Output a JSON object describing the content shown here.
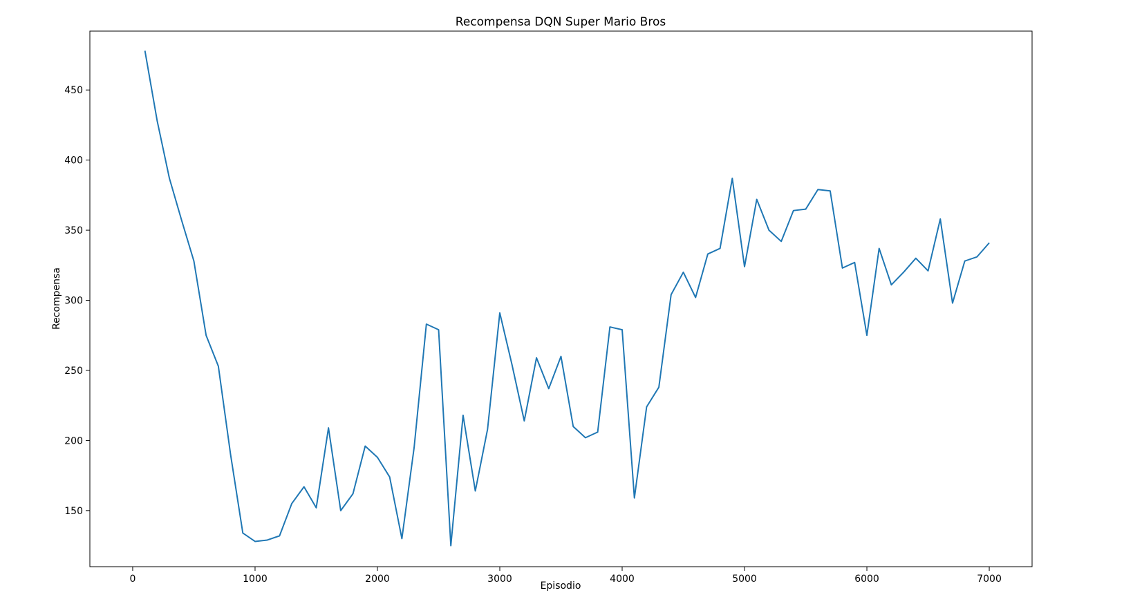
{
  "chart_data": {
    "type": "line",
    "title": "Recompensa DQN Super Mario Bros",
    "xlabel": "Episodio",
    "ylabel": "Recompensa",
    "xlim": [
      -350,
      7350
    ],
    "ylim": [
      110,
      492
    ],
    "xticks": [
      0,
      1000,
      2000,
      3000,
      4000,
      5000,
      6000,
      7000
    ],
    "yticks": [
      150,
      200,
      250,
      300,
      350,
      400,
      450
    ],
    "grid": false,
    "line_color": "#1f77b4",
    "series": [
      {
        "x": [
          100,
          200,
          300,
          400,
          500,
          600,
          700,
          800,
          900,
          1000,
          1100,
          1200,
          1300,
          1400,
          1500,
          1600,
          1700,
          1800,
          1900,
          2000,
          2100,
          2200,
          2300,
          2400,
          2500,
          2600,
          2700,
          2800,
          2900,
          3000,
          3100,
          3200,
          3300,
          3400,
          3500,
          3600,
          3700,
          3800,
          3900,
          4000,
          4100,
          4200,
          4300,
          4400,
          4500,
          4600,
          4700,
          4800,
          4900,
          5000,
          5100,
          5200,
          5300,
          5400,
          5500,
          5600,
          5700,
          5800,
          5900,
          6000,
          6100,
          6200,
          6300,
          6400,
          6500,
          6600,
          6700,
          6800,
          6900,
          7000
        ],
        "values": [
          478,
          428,
          387,
          357,
          328,
          275,
          253,
          190,
          134,
          128,
          129,
          132,
          155,
          167,
          152,
          209,
          150,
          162,
          196,
          188,
          174,
          130,
          195,
          283,
          279,
          125,
          218,
          164,
          208,
          291,
          254,
          214,
          259,
          237,
          260,
          210,
          202,
          206,
          281,
          279,
          159,
          224,
          238,
          304,
          320,
          302,
          333,
          337,
          387,
          324,
          372,
          350,
          342,
          364,
          365,
          379,
          378,
          323,
          327,
          275,
          337,
          311,
          320,
          330,
          321,
          358,
          298,
          328,
          331,
          341
        ]
      }
    ]
  }
}
